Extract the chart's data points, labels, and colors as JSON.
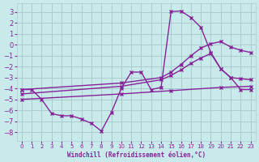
{
  "background_color": "#c8eaea",
  "grid_color": "#aacccc",
  "line_color": "#882299",
  "xlabel": "Windchill (Refroidissement éolien,°C)",
  "xlim": [
    -0.5,
    23.5
  ],
  "ylim": [
    -8.8,
    3.8
  ],
  "yticks": [
    -8,
    -7,
    -6,
    -5,
    -4,
    -3,
    -2,
    -1,
    0,
    1,
    2,
    3
  ],
  "xticks": [
    0,
    1,
    2,
    3,
    4,
    5,
    6,
    7,
    8,
    9,
    10,
    11,
    12,
    13,
    14,
    15,
    16,
    17,
    18,
    19,
    20,
    21,
    22,
    23
  ],
  "curve_zigzag_x": [
    0,
    1,
    2,
    3,
    4,
    5,
    6,
    7,
    8,
    9,
    10,
    11,
    12,
    13,
    14,
    15,
    16,
    17,
    18,
    19,
    20,
    21,
    22,
    23
  ],
  "curve_zigzag_y": [
    -4.1,
    -4.1,
    -5.0,
    -6.3,
    -6.5,
    -6.5,
    -6.8,
    -7.2,
    -7.9,
    -6.2,
    -4.0,
    -2.5,
    -2.5,
    -4.1,
    -3.9,
    3.05,
    3.1,
    2.5,
    1.6,
    -0.7,
    -2.2,
    -3.0,
    -4.1,
    -4.1
  ],
  "curve_diag_upper_x": [
    0,
    10,
    14,
    15,
    16,
    17,
    18,
    19,
    20,
    21,
    22,
    23
  ],
  "curve_diag_upper_y": [
    -4.1,
    -3.5,
    -3.0,
    -2.5,
    -1.8,
    -1.0,
    -0.3,
    0.1,
    0.3,
    -0.2,
    -0.5,
    -0.7
  ],
  "curve_diag_mid_x": [
    0,
    10,
    14,
    15,
    16,
    17,
    18,
    19,
    20,
    21,
    22,
    23
  ],
  "curve_diag_mid_y": [
    -4.5,
    -3.8,
    -3.2,
    -2.8,
    -2.3,
    -1.7,
    -1.2,
    -0.8,
    -2.2,
    -3.0,
    -3.1,
    -3.2
  ],
  "curve_diag_lower_x": [
    0,
    10,
    15,
    20,
    23
  ],
  "curve_diag_lower_y": [
    -5.0,
    -4.5,
    -4.2,
    -3.9,
    -3.8
  ]
}
